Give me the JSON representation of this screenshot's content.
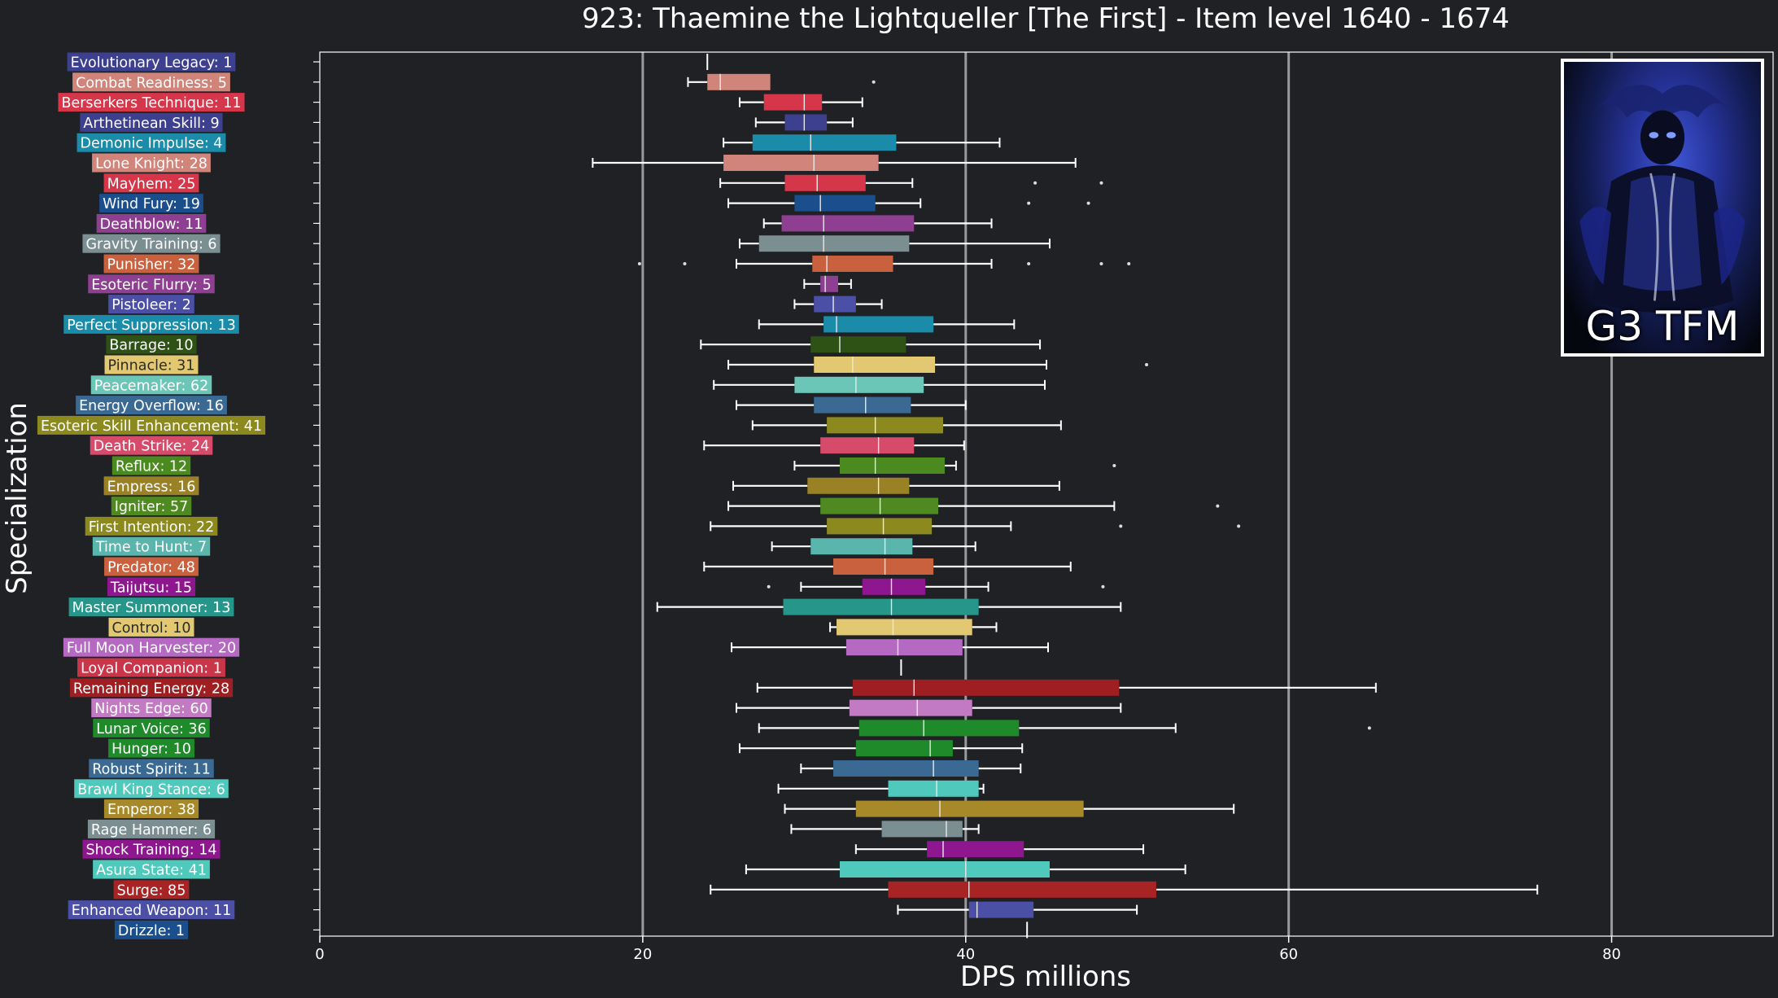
{
  "chart_data": {
    "type": "boxplot",
    "title": "923: Thaemine the Lightqueller [The First] - Item level 1640 - 1674",
    "xlabel": "DPS millions",
    "ylabel": "Specialization",
    "xlim": [
      0,
      90
    ],
    "xticks": [
      0,
      20,
      40,
      60,
      80
    ],
    "grid": "vertical at major ticks",
    "series": [
      {
        "label": "Evolutionary Legacy: 1",
        "color": "#3d3f8f",
        "min": 24.0,
        "q1": 24.0,
        "median": 24.0,
        "q3": 24.0,
        "max": 24.0,
        "outliers": []
      },
      {
        "label": "Combat Readiness: 5",
        "color": "#d1857a",
        "min": 22.8,
        "q1": 24.0,
        "median": 24.8,
        "q3": 27.9,
        "max": 27.9,
        "outliers": [
          34.3
        ]
      },
      {
        "label": "Berserkers Technique: 11",
        "color": "#d6364a",
        "min": 26.0,
        "q1": 27.5,
        "median": 30.0,
        "q3": 31.1,
        "max": 33.6,
        "outliers": []
      },
      {
        "label": "Arthetinean Skill: 9",
        "color": "#3d3f8f",
        "min": 27.0,
        "q1": 28.8,
        "median": 30.0,
        "q3": 31.4,
        "max": 33.0,
        "outliers": []
      },
      {
        "label": "Demonic Impulse: 4",
        "color": "#1a8caa",
        "min": 25.0,
        "q1": 26.8,
        "median": 30.4,
        "q3": 35.7,
        "max": 42.1,
        "outliers": []
      },
      {
        "label": "Lone Knight: 28",
        "color": "#d1857a",
        "min": 16.9,
        "q1": 25.0,
        "median": 30.6,
        "q3": 34.6,
        "max": 46.8,
        "outliers": []
      },
      {
        "label": "Mayhem: 25",
        "color": "#d6364a",
        "min": 24.8,
        "q1": 28.8,
        "median": 30.8,
        "q3": 33.8,
        "max": 36.7,
        "outliers": [
          44.3,
          48.4
        ]
      },
      {
        "label": "Wind Fury: 19",
        "color": "#1a4e8c",
        "min": 25.3,
        "q1": 29.4,
        "median": 31.0,
        "q3": 34.4,
        "max": 37.2,
        "outliers": [
          43.9,
          47.6
        ]
      },
      {
        "label": "Deathblow: 11",
        "color": "#8e3f91",
        "min": 27.5,
        "q1": 28.6,
        "median": 31.2,
        "q3": 36.8,
        "max": 41.6,
        "outliers": []
      },
      {
        "label": "Gravity Training: 6",
        "color": "#7b8e92",
        "min": 26.0,
        "q1": 27.2,
        "median": 31.2,
        "q3": 36.5,
        "max": 45.2,
        "outliers": []
      },
      {
        "label": "Punisher: 32",
        "color": "#c9613f",
        "min": 25.8,
        "q1": 30.5,
        "median": 31.4,
        "q3": 35.5,
        "max": 41.6,
        "outliers": [
          19.8,
          22.6,
          43.9,
          48.4,
          50.1
        ]
      },
      {
        "label": "Esoteric Flurry: 5",
        "color": "#8e3f91",
        "min": 30.0,
        "q1": 31.0,
        "median": 31.3,
        "q3": 32.1,
        "max": 32.9,
        "outliers": []
      },
      {
        "label": "Pistoleer: 2",
        "color": "#4b4fa6",
        "min": 29.4,
        "q1": 30.6,
        "median": 31.8,
        "q3": 33.2,
        "max": 34.8,
        "outliers": []
      },
      {
        "label": "Perfect Suppression: 13",
        "color": "#1a8caa",
        "min": 27.2,
        "q1": 31.2,
        "median": 32.0,
        "q3": 38.0,
        "max": 43.0,
        "outliers": []
      },
      {
        "label": "Barrage: 10",
        "color": "#2e5216",
        "min": 23.6,
        "q1": 30.4,
        "median": 32.2,
        "q3": 36.3,
        "max": 44.6,
        "outliers": []
      },
      {
        "label": "Pinnacle: 31",
        "color": "#e3c872",
        "min": 25.3,
        "q1": 30.6,
        "median": 33.0,
        "q3": 38.1,
        "max": 45.0,
        "outliers": [
          51.2
        ]
      },
      {
        "label": "Peacemaker: 62",
        "color": "#6cc6b8",
        "min": 24.4,
        "q1": 29.4,
        "median": 33.2,
        "q3": 37.4,
        "max": 44.9,
        "outliers": []
      },
      {
        "label": "Energy Overflow: 16",
        "color": "#3a6a94",
        "min": 25.8,
        "q1": 30.6,
        "median": 33.8,
        "q3": 36.6,
        "max": 40.0,
        "outliers": []
      },
      {
        "label": "Esoteric Skill Enhancement: 41",
        "color": "#8c8a1f",
        "min": 26.8,
        "q1": 31.4,
        "median": 34.4,
        "q3": 38.6,
        "max": 45.9,
        "outliers": []
      },
      {
        "label": "Death Strike: 24",
        "color": "#d64a6a",
        "min": 23.8,
        "q1": 31.0,
        "median": 34.6,
        "q3": 36.8,
        "max": 39.9,
        "outliers": []
      },
      {
        "label": "Reflux: 12",
        "color": "#4a8a1f",
        "min": 29.4,
        "q1": 32.2,
        "median": 34.4,
        "q3": 38.7,
        "max": 39.4,
        "outliers": [
          49.2
        ]
      },
      {
        "label": "Empress: 16",
        "color": "#9b8125",
        "min": 25.6,
        "q1": 30.2,
        "median": 34.6,
        "q3": 36.5,
        "max": 45.8,
        "outliers": []
      },
      {
        "label": "Igniter: 57",
        "color": "#4e8a1f",
        "min": 25.3,
        "q1": 31.0,
        "median": 34.7,
        "q3": 38.3,
        "max": 49.2,
        "outliers": [
          55.6
        ]
      },
      {
        "label": "First Intention: 22",
        "color": "#8c8a1f",
        "min": 24.2,
        "q1": 31.4,
        "median": 34.9,
        "q3": 37.9,
        "max": 42.8,
        "outliers": [
          49.6,
          56.9
        ]
      },
      {
        "label": "Time to Hunt: 7",
        "color": "#5ab5ad",
        "min": 28.0,
        "q1": 30.4,
        "median": 35.0,
        "q3": 36.7,
        "max": 40.6,
        "outliers": []
      },
      {
        "label": "Predator: 48",
        "color": "#c9613f",
        "min": 23.8,
        "q1": 31.8,
        "median": 35.0,
        "q3": 38.0,
        "max": 46.5,
        "outliers": []
      },
      {
        "label": "Taijutsu: 15",
        "color": "#8e168e",
        "min": 29.8,
        "q1": 33.6,
        "median": 35.4,
        "q3": 37.5,
        "max": 41.4,
        "outliers": [
          27.8,
          48.5
        ]
      },
      {
        "label": "Master Summoner: 13",
        "color": "#26968a",
        "min": 20.9,
        "q1": 28.7,
        "median": 35.4,
        "q3": 40.8,
        "max": 49.6,
        "outliers": []
      },
      {
        "label": "Control: 10",
        "color": "#e3c872",
        "min": 31.6,
        "q1": 32.0,
        "median": 35.5,
        "q3": 40.4,
        "max": 41.9,
        "outliers": []
      },
      {
        "label": "Full Moon Harvester: 20",
        "color": "#b569c2",
        "min": 25.5,
        "q1": 32.6,
        "median": 35.8,
        "q3": 39.8,
        "max": 45.1,
        "outliers": []
      },
      {
        "label": "Loyal Companion: 1",
        "color": "#c9364a",
        "min": 36.0,
        "q1": 36.0,
        "median": 36.0,
        "q3": 36.0,
        "max": 36.0,
        "outliers": []
      },
      {
        "label": "Remaining Energy: 28",
        "color": "#9e1e22",
        "min": 27.1,
        "q1": 33.0,
        "median": 36.8,
        "q3": 49.5,
        "max": 65.4,
        "outliers": []
      },
      {
        "label": "Nights Edge: 60",
        "color": "#c27ac2",
        "min": 25.8,
        "q1": 32.8,
        "median": 37.0,
        "q3": 40.4,
        "max": 49.6,
        "outliers": []
      },
      {
        "label": "Lunar Voice: 36",
        "color": "#1f8a2a",
        "min": 27.2,
        "q1": 33.4,
        "median": 37.4,
        "q3": 43.3,
        "max": 53.0,
        "outliers": [
          65.0
        ]
      },
      {
        "label": "Hunger: 10",
        "color": "#1f8a2a",
        "min": 26.0,
        "q1": 33.2,
        "median": 37.8,
        "q3": 39.2,
        "max": 43.5,
        "outliers": []
      },
      {
        "label": "Robust Spirit: 11",
        "color": "#3a6a94",
        "min": 29.8,
        "q1": 31.8,
        "median": 38.0,
        "q3": 40.8,
        "max": 43.4,
        "outliers": []
      },
      {
        "label": "Brawl King Stance: 6",
        "color": "#4fc9bc",
        "min": 28.4,
        "q1": 35.2,
        "median": 38.2,
        "q3": 40.8,
        "max": 41.1,
        "outliers": []
      },
      {
        "label": "Emperor: 38",
        "color": "#a8892a",
        "min": 28.8,
        "q1": 33.2,
        "median": 38.4,
        "q3": 47.3,
        "max": 56.6,
        "outliers": []
      },
      {
        "label": "Rage Hammer: 6",
        "color": "#7b8e92",
        "min": 29.2,
        "q1": 34.8,
        "median": 38.8,
        "q3": 39.8,
        "max": 40.8,
        "outliers": []
      },
      {
        "label": "Shock Training: 14",
        "color": "#8e168e",
        "min": 33.2,
        "q1": 37.6,
        "median": 38.6,
        "q3": 43.6,
        "max": 51.0,
        "outliers": []
      },
      {
        "label": "Asura State: 41",
        "color": "#4fc9bc",
        "min": 26.4,
        "q1": 32.2,
        "median": 40.0,
        "q3": 45.2,
        "max": 53.6,
        "outliers": []
      },
      {
        "label": "Surge: 85",
        "color": "#a82424",
        "min": 24.2,
        "q1": 35.2,
        "median": 40.2,
        "q3": 51.8,
        "max": 75.4,
        "outliers": []
      },
      {
        "label": "Enhanced Weapon: 11",
        "color": "#4b4fa6",
        "min": 35.8,
        "q1": 40.2,
        "median": 40.7,
        "q3": 44.2,
        "max": 50.6,
        "outliers": []
      },
      {
        "label": "Drizzle: 1",
        "color": "#1a4e8c",
        "min": 43.8,
        "q1": 43.8,
        "median": 43.8,
        "q3": 43.8,
        "max": 43.8,
        "outliers": []
      }
    ]
  },
  "badge": {
    "label": "G3 TFM",
    "portrait_icon": "demon-boss-portrait-icon",
    "border_color": "#ffffff"
  },
  "colors": {
    "background": "#1f2124",
    "text": "#ffffff",
    "grid": "#9a9a9a",
    "whisker": "#ffffff"
  }
}
